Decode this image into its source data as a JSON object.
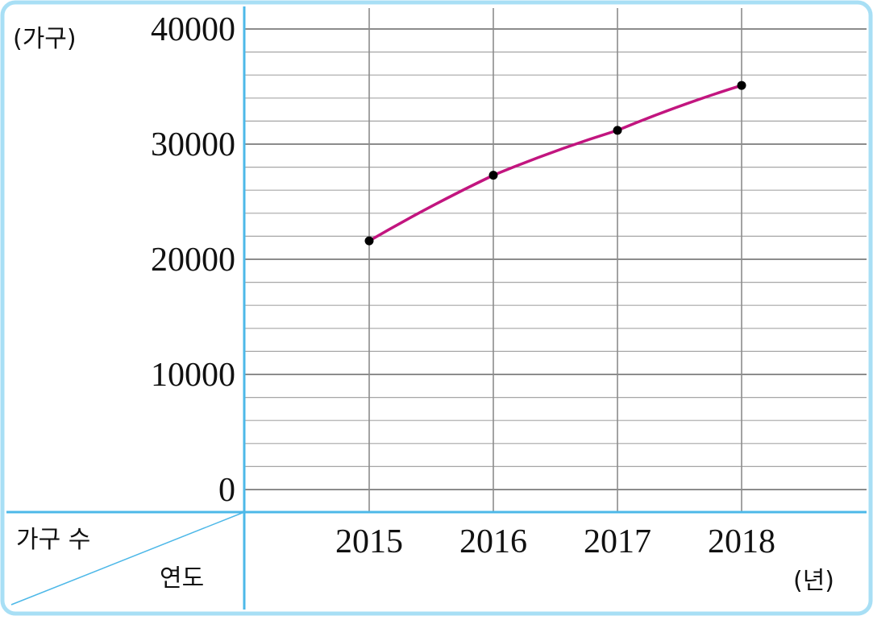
{
  "chart_data": {
    "type": "line",
    "categories": [
      "2015",
      "2016",
      "2017",
      "2018"
    ],
    "values": [
      21600,
      27300,
      31200,
      35100
    ],
    "ylim": [
      0,
      40000
    ],
    "y_ticks": [
      "0",
      "10000",
      "20000",
      "30000",
      "40000"
    ],
    "y_unit": "(가구)",
    "x_unit": "(년)",
    "corner_header": {
      "row_label": "가구 수",
      "col_label": "연도"
    },
    "grid": true,
    "colors": {
      "line": "#c2157f",
      "point": "#000000",
      "axis": "#4db8e8",
      "frame": "#a8dff5",
      "grid_major": "#8c8c8c",
      "grid_minor": "#a6a6a6"
    }
  }
}
